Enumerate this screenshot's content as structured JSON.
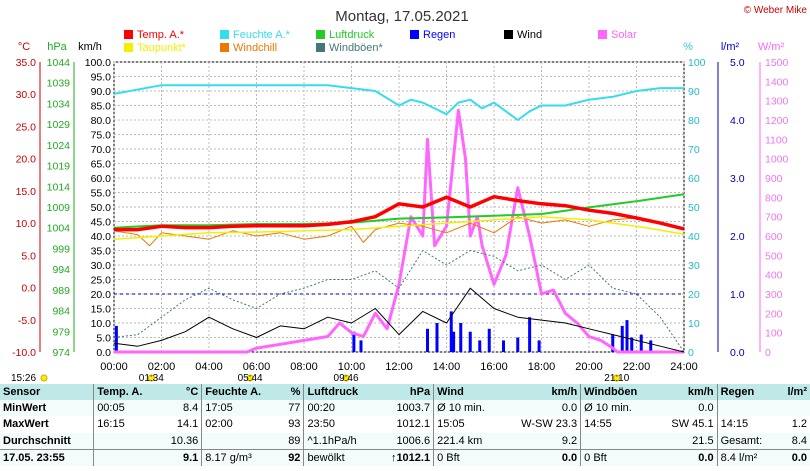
{
  "header": {
    "title": "Montag, 17.05.2021",
    "copyright": "© Weber Mike"
  },
  "axes": {
    "units": [
      "°C",
      "hPa",
      "km/h",
      "%",
      "l/m²",
      "W/m²"
    ],
    "temp_ticks": [
      "35.0",
      "30.0",
      "25.0",
      "20.0",
      "15.0",
      "10.0",
      "5.0",
      "0.0",
      "-5.0",
      "-10.0"
    ],
    "hpa_ticks": [
      "1044",
      "1039",
      "1034",
      "1029",
      "1024",
      "1019",
      "1014",
      "1009",
      "1004",
      "999",
      "994",
      "989",
      "984",
      "979",
      "974"
    ],
    "kmh_ticks": [
      "100.0",
      "95.0",
      "90.0",
      "85.0",
      "80.0",
      "75.0",
      "70.0",
      "65.0",
      "60.0",
      "55.0",
      "50.0",
      "45.0",
      "40.0",
      "35.0",
      "30.0",
      "25.0",
      "20.0",
      "15.0",
      "10.0",
      "5.0",
      "0.0"
    ],
    "pct_ticks": [
      "100",
      "90",
      "80",
      "70",
      "60",
      "50",
      "40",
      "30",
      "20",
      "10",
      "0"
    ],
    "rain_ticks": [
      "5.0",
      "4.0",
      "3.0",
      "2.0",
      "1.0",
      "0.0"
    ],
    "solar_ticks": [
      "1500",
      "1400",
      "1300",
      "1200",
      "1100",
      "1000",
      "900",
      "800",
      "700",
      "600",
      "500",
      "400",
      "300",
      "200",
      "100",
      "0"
    ],
    "time_ticks": [
      "00:00",
      "02:00",
      "04:00",
      "06:00",
      "08:00",
      "10:00",
      "12:00",
      "14:00",
      "16:00",
      "18:00",
      "20:00",
      "22:00",
      "24:00"
    ]
  },
  "legend": [
    {
      "label": "Temp. A.*",
      "color": "#ff0000"
    },
    {
      "label": "Feuchte A.*",
      "color": "#33ddee"
    },
    {
      "label": "Luftdruck",
      "color": "#22cc22"
    },
    {
      "label": "Regen",
      "color": "#0000ff"
    },
    {
      "label": "Wind",
      "color": "#000000"
    },
    {
      "label": "Solar",
      "color": "#ff66ff"
    },
    {
      "label": "Taupunkt*",
      "color": "#f0f000"
    },
    {
      "label": "Windchill",
      "color": "#ee7700"
    },
    {
      "label": "Windböen*",
      "color": "#447777"
    }
  ],
  "sun": {
    "rise_label": "05:44",
    "set_label": "21:10",
    "lux_start": "01:34",
    "lux_peak": "09:46",
    "first_time": "15:26"
  },
  "table": {
    "headers": [
      "Sensor",
      "Temp. A.",
      "°C",
      "Feuchte A.",
      "%",
      "Luftdruck",
      "hPa",
      "Wind",
      "km/h",
      "Windböen",
      "km/h",
      "Regen",
      "l/m²"
    ],
    "rows": [
      [
        "MinWert",
        "00:05",
        "8.4",
        "17:05",
        "77",
        "00:20",
        "1003.7",
        "Ø 10 min.",
        "0.0",
        "Ø 10 min.",
        "0.0",
        "",
        ""
      ],
      [
        "MaxWert",
        "16:15",
        "14.1",
        "02:00",
        "93",
        "23:50",
        "1012.1",
        "15:05",
        "W-SW 23.3",
        "14:55",
        "SW 45.1",
        "14:15",
        "1.2"
      ],
      [
        "Durchschnitt",
        "",
        "10.36",
        "",
        "89",
        "^1.1hPa/h",
        "1006.6",
        "221.4 km",
        "9.2",
        "",
        "21.5",
        "Gesamt:",
        "8.4"
      ],
      [
        "17.05. 23:55",
        "",
        "9.1",
        "8.17 g/m³",
        "92",
        "bewölkt",
        "↑1012.1",
        "0 Bft",
        "0.0",
        "0 Bft",
        "0.0",
        "8.4 l/m²",
        "0.0"
      ]
    ]
  },
  "chart_data": {
    "type": "line",
    "title": "Montag, 17.05.2021",
    "x_unit": "hours",
    "xlim": [
      0,
      24
    ],
    "series": [
      {
        "name": "Temp. A.*",
        "unit": "°C",
        "color": "#ff0000",
        "x": [
          0,
          1,
          2,
          3,
          4,
          5,
          6,
          7,
          8,
          9,
          10,
          11,
          12,
          13,
          14,
          15,
          16,
          17,
          18,
          19,
          20,
          21,
          22,
          23,
          24
        ],
        "y": [
          9.0,
          9.0,
          9.5,
          9.3,
          9.3,
          9.5,
          9.6,
          9.6,
          9.6,
          9.8,
          10.2,
          11.0,
          13.0,
          12.5,
          14.0,
          12.5,
          14.1,
          13.5,
          13.0,
          12.7,
          12.0,
          11.5,
          10.8,
          10.0,
          9.1
        ]
      },
      {
        "name": "Feuchte A.*",
        "unit": "%",
        "color": "#33ddee",
        "x": [
          0,
          2,
          4,
          6,
          8,
          9,
          10,
          11,
          12,
          12.5,
          13,
          13.5,
          14,
          14.5,
          15,
          15.5,
          16,
          16.5,
          17,
          17.5,
          18,
          19,
          20,
          21,
          22,
          23,
          24
        ],
        "y": [
          89,
          92,
          92,
          92,
          92,
          92,
          91,
          90,
          85,
          87,
          86,
          84,
          82,
          86,
          87,
          84,
          86,
          83,
          80,
          83,
          85,
          85,
          87,
          88,
          90,
          91,
          91
        ]
      },
      {
        "name": "Luftdruck",
        "unit": "hPa",
        "color": "#22cc22",
        "x": [
          0,
          2,
          4,
          6,
          8,
          10,
          12,
          14,
          16,
          18,
          19,
          20,
          22,
          24
        ],
        "y": [
          1004.0,
          1004.6,
          1004.6,
          1004.9,
          1004.9,
          1005.2,
          1006.2,
          1006.5,
          1006.9,
          1007.3,
          1008.1,
          1008.9,
          1010.4,
          1012.1
        ]
      },
      {
        "name": "Taupunkt*",
        "unit": "°C",
        "color": "#f0f000",
        "x": [
          0,
          2,
          4,
          6,
          8,
          10,
          12,
          14,
          16,
          18,
          20,
          22,
          24
        ],
        "y": [
          7.5,
          8.0,
          8.5,
          8.6,
          8.8,
          9.0,
          9.5,
          10.0,
          10.5,
          11.0,
          10.5,
          9.5,
          8.3
        ]
      },
      {
        "name": "Windchill",
        "unit": "°C",
        "color": "#ee7700",
        "x": [
          0,
          1,
          1.5,
          2,
          3,
          4,
          5,
          6,
          7,
          8,
          9,
          10,
          10.5,
          11,
          12,
          13,
          14,
          15,
          16,
          17,
          18,
          19,
          20,
          21,
          22
        ],
        "y": [
          8.8,
          8.2,
          6.5,
          8.5,
          8.0,
          7.5,
          8.8,
          8.0,
          8.5,
          7.5,
          8.0,
          9.5,
          7.0,
          9.0,
          10.0,
          9.5,
          8.5,
          10.0,
          8.5,
          11.0,
          10.0,
          10.5,
          9.5,
          10.5,
          10.8
        ]
      },
      {
        "name": "Wind",
        "unit": "km/h",
        "color": "#000000",
        "x": [
          0,
          1,
          2,
          3,
          4,
          5,
          6,
          7,
          8,
          9,
          10,
          11,
          12,
          13,
          14,
          15,
          16,
          17,
          18,
          19,
          20,
          21,
          22,
          23,
          24
        ],
        "y": [
          3,
          2,
          4,
          7,
          12,
          8,
          5,
          9,
          8,
          12,
          10,
          15,
          6,
          14,
          10,
          22,
          15,
          12,
          11,
          10,
          8,
          6,
          4,
          2,
          0
        ]
      },
      {
        "name": "Windböen*",
        "unit": "km/h",
        "color": "#447777",
        "x": [
          0,
          1,
          2,
          3,
          4,
          5,
          6,
          7,
          8,
          9,
          10,
          11,
          12,
          13,
          14,
          15,
          16,
          17,
          18,
          19,
          20,
          21,
          22,
          23,
          24
        ],
        "y": [
          5,
          6,
          12,
          18,
          22,
          18,
          15,
          20,
          22,
          25,
          25,
          28,
          22,
          35,
          30,
          35,
          33,
          28,
          30,
          25,
          30,
          22,
          20,
          12,
          0
        ]
      },
      {
        "name": "Solar",
        "unit": "W/m²",
        "color": "#ff66ff",
        "x": [
          0,
          5.6,
          6,
          7,
          8,
          9,
          9.5,
          10,
          10.5,
          11,
          11.5,
          12,
          12.5,
          13,
          13.2,
          13.5,
          14,
          14.5,
          14.8,
          15,
          15.3,
          15.5,
          16,
          16.5,
          17,
          17.5,
          18,
          18.5,
          19,
          19.5,
          20,
          20.5,
          21,
          21.2,
          24
        ],
        "y": [
          0,
          0,
          20,
          40,
          60,
          80,
          150,
          100,
          80,
          200,
          120,
          350,
          700,
          600,
          1100,
          550,
          650,
          1250,
          1000,
          600,
          700,
          550,
          350,
          500,
          850,
          600,
          300,
          320,
          200,
          150,
          80,
          60,
          20,
          0,
          0
        ]
      }
    ],
    "rain_bars": {
      "name": "Regen",
      "unit": "l/m²",
      "color": "#0000ff",
      "x": [
        0.1,
        10.1,
        10.4,
        13.2,
        13.6,
        14.2,
        14.3,
        14.6,
        15.0,
        15.4,
        15.8,
        16.4,
        17.0,
        17.5,
        17.9,
        21.0,
        21.4,
        21.6,
        21.8,
        22.2,
        22.6
      ],
      "y": [
        0.45,
        0.35,
        0.2,
        0.4,
        0.5,
        0.7,
        0.35,
        0.5,
        0.35,
        0.2,
        0.4,
        0.2,
        0.25,
        0.6,
        0.2,
        0.3,
        0.45,
        0.55,
        0.25,
        0.3,
        0.2
      ]
    },
    "ylim_temp": [
      -10,
      35
    ],
    "ylim_hpa": [
      974,
      1044
    ],
    "ylim_kmh": [
      0,
      100
    ],
    "ylim_pct": [
      0,
      100
    ],
    "ylim_rain": [
      0,
      5
    ],
    "ylim_solar": [
      0,
      1500
    ],
    "reference_line": {
      "unit": "l/m²",
      "value": 1.0
    }
  }
}
